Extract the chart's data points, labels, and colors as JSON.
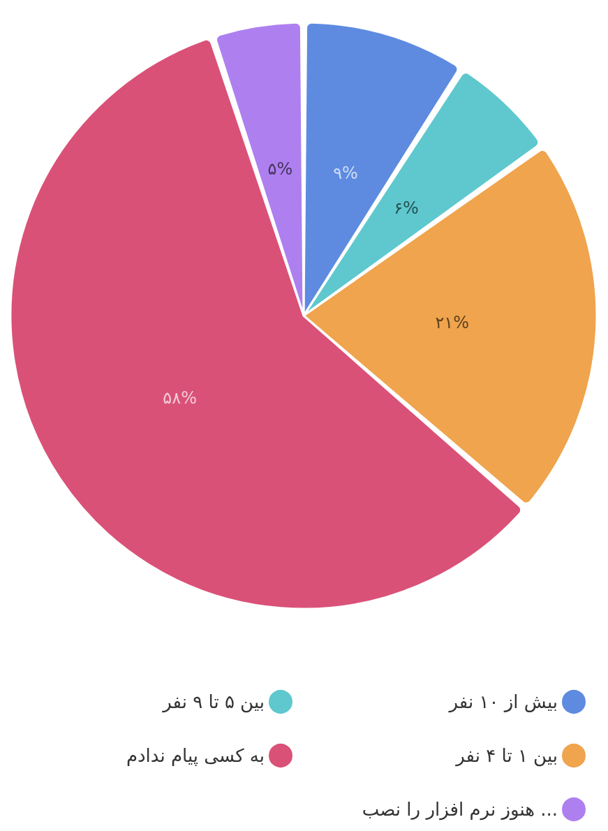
{
  "chart_data": {
    "type": "pie",
    "categories": [
      "بیش از ۱۰ نفر",
      "بین ۵ تا ۹ نفر",
      "بین ۱ تا ۴ نفر",
      "به کسی پیام ندادم",
      "هنوز نرم افزار را نصب ..."
    ],
    "values": [
      9,
      6,
      21,
      58,
      5
    ],
    "value_labels": [
      "۹%",
      "۶%",
      "۲۱%",
      "۵۸%",
      "۵%"
    ],
    "colors": [
      "#5e8be0",
      "#5ec8ce",
      "#efa44d",
      "#da5178",
      "#ae80ef"
    ],
    "legend": "bottom"
  }
}
